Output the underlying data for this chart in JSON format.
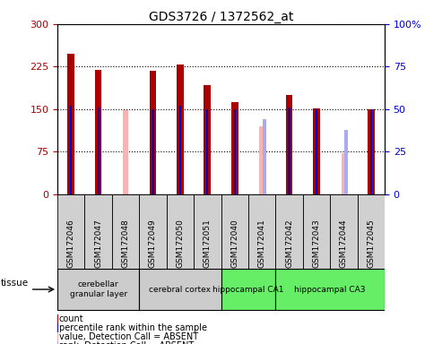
{
  "title": "GDS3726 / 1372562_at",
  "samples": [
    "GSM172046",
    "GSM172047",
    "GSM172048",
    "GSM172049",
    "GSM172050",
    "GSM172051",
    "GSM172040",
    "GSM172041",
    "GSM172042",
    "GSM172043",
    "GSM172044",
    "GSM172045"
  ],
  "count_values": [
    248,
    220,
    null,
    218,
    228,
    193,
    162,
    null,
    175,
    151,
    null,
    150
  ],
  "count_color": "#aa0000",
  "absent_value_values": [
    null,
    null,
    148,
    null,
    null,
    null,
    null,
    120,
    null,
    null,
    72,
    null
  ],
  "absent_value_color": "#ffb0b0",
  "percentile_rank_values": [
    52,
    51,
    null,
    50,
    52,
    50,
    50,
    null,
    51,
    50,
    null,
    50
  ],
  "percentile_rank_color": "#0000cc",
  "absent_rank_values": [
    null,
    null,
    null,
    null,
    null,
    null,
    null,
    44,
    null,
    null,
    38,
    null
  ],
  "absent_rank_color": "#aaaaee",
  "ylim_left": [
    0,
    300
  ],
  "ylim_right": [
    0,
    100
  ],
  "yticks_left": [
    0,
    75,
    150,
    225,
    300
  ],
  "yticks_right": [
    0,
    25,
    50,
    75,
    100
  ],
  "tissue_groups": [
    {
      "label": "cerebellar\ngranular layer",
      "samples": [
        "GSM172046",
        "GSM172047",
        "GSM172048"
      ],
      "color": "#cccccc"
    },
    {
      "label": "cerebral cortex",
      "samples": [
        "GSM172049",
        "GSM172050",
        "GSM172051"
      ],
      "color": "#cccccc"
    },
    {
      "label": "hippocampal CA1",
      "samples": [
        "GSM172040",
        "GSM172041"
      ],
      "color": "#66ee66"
    },
    {
      "label": "hippocampal CA3",
      "samples": [
        "GSM172042",
        "GSM172043",
        "GSM172044",
        "GSM172045"
      ],
      "color": "#66ee66"
    }
  ],
  "tissue_label": "tissue",
  "bar_width": 0.25,
  "rank_bar_width": 0.07,
  "absent_bar_width": 0.18,
  "legend_items": [
    {
      "label": "count",
      "color": "#aa0000"
    },
    {
      "label": "percentile rank within the sample",
      "color": "#0000cc"
    },
    {
      "label": "value, Detection Call = ABSENT",
      "color": "#ffb0b0"
    },
    {
      "label": "rank, Detection Call = ABSENT",
      "color": "#aaaaee"
    }
  ],
  "sample_col_color": "#d0d0d0",
  "fig_width": 4.93,
  "fig_height": 3.84,
  "dpi": 100
}
